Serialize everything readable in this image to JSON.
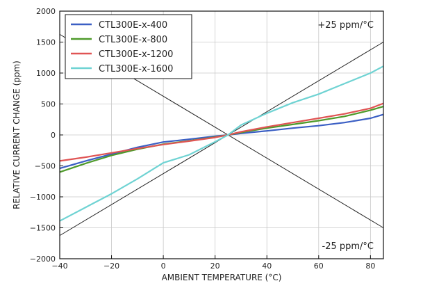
{
  "chart_data": {
    "type": "line",
    "xlabel": "AMBIENT TEMPERATURE (°C)",
    "ylabel": "RELATIVE CURRENT CHANGE (ppm)",
    "xlim": [
      -40,
      85
    ],
    "ylim": [
      -2000,
      2000
    ],
    "xticks": [
      -40,
      -20,
      0,
      20,
      40,
      60,
      80
    ],
    "yticks": [
      -2000,
      -1500,
      -1000,
      -500,
      0,
      500,
      1000,
      1500,
      2000
    ],
    "grid": true,
    "legend": "top-left",
    "series": [
      {
        "name": "CTL300E-x-400",
        "color": "#3b5fc4",
        "x": [
          -40,
          -30,
          -20,
          -10,
          0,
          10,
          20,
          25,
          30,
          40,
          50,
          60,
          70,
          80,
          85
        ],
        "y": [
          -540,
          -420,
          -310,
          -200,
          -115,
          -70,
          -20,
          0,
          25,
          65,
          110,
          150,
          200,
          270,
          330
        ]
      },
      {
        "name": "CTL300E-x-800",
        "color": "#4e9a2a",
        "x": [
          -40,
          -30,
          -20,
          -10,
          0,
          10,
          20,
          25,
          30,
          40,
          50,
          60,
          70,
          80,
          85
        ],
        "y": [
          -600,
          -460,
          -330,
          -230,
          -150,
          -95,
          -35,
          0,
          40,
          110,
          170,
          230,
          300,
          400,
          460
        ]
      },
      {
        "name": "CTL300E-x-1200",
        "color": "#e05454",
        "x": [
          -40,
          -30,
          -20,
          -10,
          0,
          10,
          20,
          25,
          30,
          40,
          50,
          60,
          70,
          80,
          85
        ],
        "y": [
          -420,
          -360,
          -290,
          -220,
          -155,
          -100,
          -40,
          0,
          50,
          130,
          200,
          270,
          340,
          430,
          510
        ]
      },
      {
        "name": "CTL300E-x-1600",
        "color": "#6fd3d3",
        "x": [
          -40,
          -30,
          -20,
          -10,
          0,
          10,
          20,
          25,
          30,
          40,
          50,
          60,
          70,
          80,
          85
        ],
        "y": [
          -1390,
          -1170,
          -950,
          -710,
          -450,
          -320,
          -110,
          0,
          160,
          350,
          520,
          660,
          830,
          1000,
          1110
        ]
      }
    ],
    "reference_lines": [
      {
        "label": "+25 ppm/°C",
        "slope": 25,
        "x0": 25,
        "label_pos": "top-right"
      },
      {
        "label": "-25 ppm/°C",
        "slope": -25,
        "x0": 25,
        "label_pos": "bottom-right"
      }
    ]
  }
}
